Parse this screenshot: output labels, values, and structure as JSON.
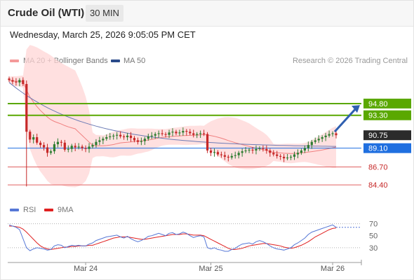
{
  "header": {
    "title": "Crude Oil (WTI)",
    "timeframe": "30 MIN"
  },
  "timestamp": "Wednesday, March 25, 2026 9:05:05 PM CET",
  "legend": {
    "bollinger": "MA 20 + Bollinger Bands",
    "ma50": "MA 50",
    "credit": "Research © 2026 Trading Central"
  },
  "rsi_legend": {
    "rsi": "RSI",
    "ma9": "9MA"
  },
  "colors": {
    "up": "#2e7d32",
    "down": "#c62828",
    "band": "#ffd6d6",
    "ma20": "#f08080",
    "ma50": "#6c7bb5",
    "green_level": "#5aa800",
    "blue_level": "#1f6fe0",
    "red_level": "#e06060",
    "current": "#2b2b2b",
    "rsi": "#5577d6",
    "rsi_ma": "#e02020",
    "arrow": "#2f5fb0"
  },
  "chart_data": [
    {
      "type": "candlestick",
      "title": "",
      "y_axis": {
        "min": 82.0,
        "max": 99.0
      },
      "x_axis_labels": [
        "Mar 24",
        "Mar 25",
        "Mar 26"
      ],
      "x_axis_label_index": [
        22,
        58,
        93
      ],
      "candle_count": 95,
      "close": [
        97.8,
        97.6,
        97.5,
        97.8,
        97.3,
        91.2,
        90.2,
        90.5,
        89.8,
        89.5,
        89.2,
        88.5,
        88.7,
        89.6,
        89.9,
        89.8,
        88.9,
        89.0,
        89.4,
        89.2,
        89.3,
        89.1,
        89.0,
        89.3,
        89.5,
        89.9,
        90.1,
        90.3,
        90.5,
        90.6,
        90.7,
        90.8,
        90.6,
        90.5,
        90.7,
        90.4,
        90.1,
        89.9,
        90.0,
        90.3,
        90.6,
        90.7,
        90.9,
        91.0,
        90.9,
        90.8,
        91.1,
        91.2,
        91.0,
        91.1,
        91.3,
        91.2,
        91.0,
        90.8,
        90.9,
        91.0,
        90.9,
        88.8,
        88.5,
        88.6,
        88.3,
        88.2,
        88.0,
        87.9,
        88.1,
        88.2,
        88.5,
        88.7,
        88.8,
        88.9,
        88.8,
        89.0,
        89.1,
        89.0,
        88.8,
        88.5,
        88.3,
        88.1,
        88.0,
        87.8,
        87.9,
        88.0,
        88.3,
        88.5,
        88.8,
        89.1,
        89.5,
        89.9,
        90.1,
        90.3,
        90.5,
        90.7,
        90.9,
        91.0,
        90.75
      ],
      "levels": [
        {
          "value": 94.8,
          "label": "94.80",
          "kind": "resistance"
        },
        {
          "value": 93.3,
          "label": "93.30",
          "kind": "resistance"
        },
        {
          "value": 90.75,
          "label": "90.75",
          "kind": "current"
        },
        {
          "value": 89.1,
          "label": "89.10",
          "kind": "pivot"
        },
        {
          "value": 86.7,
          "label": "86.70",
          "kind": "support"
        },
        {
          "value": 84.4,
          "label": "84.40",
          "kind": "support"
        }
      ],
      "ma50": {
        "start": 97.5,
        "end": 89.2
      },
      "series": [
        {
          "name": "MA 20 + Bollinger Bands"
        },
        {
          "name": "MA 50"
        }
      ]
    },
    {
      "type": "line",
      "title": "",
      "y_axis": {
        "min": 10,
        "max": 80,
        "ticks": [
          70,
          50,
          30
        ]
      },
      "series": [
        {
          "name": "RSI",
          "values": [
            68,
            66,
            64,
            60,
            45,
            30,
            25,
            28,
            30,
            29,
            28,
            26,
            27,
            33,
            35,
            34,
            30,
            32,
            34,
            33,
            34,
            33,
            33,
            36,
            38,
            42,
            44,
            46,
            48,
            49,
            50,
            51,
            48,
            46,
            49,
            45,
            42,
            40,
            42,
            45,
            49,
            50,
            52,
            54,
            52,
            50,
            54,
            55,
            52,
            53,
            56,
            54,
            50,
            47,
            49,
            50,
            48,
            30,
            28,
            30,
            27,
            26,
            24,
            24,
            27,
            29,
            33,
            36,
            37,
            38,
            36,
            40,
            42,
            40,
            37,
            33,
            30,
            28,
            27,
            26,
            28,
            30,
            35,
            38,
            42,
            46,
            52,
            56,
            58,
            60,
            62,
            64,
            66,
            68,
            64
          ]
        },
        {
          "name": "9MA",
          "values": [
            66,
            66,
            65,
            64,
            61,
            56,
            50,
            44,
            38,
            33,
            30,
            28,
            27,
            28,
            29,
            30,
            31,
            31,
            32,
            32,
            33,
            33,
            33,
            34,
            34,
            36,
            38,
            40,
            42,
            44,
            46,
            47,
            48,
            48,
            48,
            47,
            46,
            45,
            44,
            44,
            45,
            46,
            47,
            48,
            49,
            50,
            51,
            52,
            52,
            52,
            53,
            53,
            52,
            51,
            51,
            51,
            50,
            47,
            44,
            41,
            38,
            35,
            32,
            29,
            27,
            27,
            28,
            29,
            31,
            33,
            34,
            35,
            36,
            37,
            37,
            36,
            35,
            34,
            33,
            31,
            30,
            29,
            30,
            32,
            34,
            37,
            40,
            44,
            48,
            51,
            54,
            57,
            60,
            62,
            63
          ]
        }
      ]
    }
  ]
}
